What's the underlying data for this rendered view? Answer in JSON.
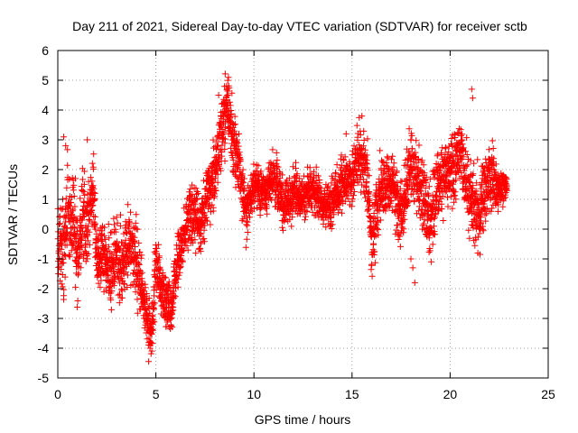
{
  "chart_data": {
    "type": "scatter",
    "title": "Day 211 of 2021, Sidereal Day-to-day VTEC variation (SDTVAR) for receiver sctb",
    "xlabel": "GPS time / hours",
    "ylabel": "SDTVAR / TECUs",
    "xlim": [
      0,
      25
    ],
    "ylim": [
      -5,
      6
    ],
    "xticks": [
      0,
      5,
      10,
      15,
      20,
      25
    ],
    "yticks": [
      -5,
      -4,
      -3,
      -2,
      -1,
      0,
      1,
      2,
      3,
      4,
      5,
      6
    ],
    "xtick_labels": [
      "0",
      "5",
      "10",
      "15",
      "20",
      "25"
    ],
    "ytick_labels": [
      "-5",
      "-4",
      "-3",
      "-2",
      "-1",
      "0",
      "1",
      "2",
      "3",
      "4",
      "5",
      "6"
    ],
    "grid": true,
    "grid_style": "dotted",
    "marker": "+",
    "marker_color": "#ff0000",
    "series": [
      {
        "name": "SDTVAR",
        "envelope_note": "approximate central trend (hours, TECU) with spread; dense '+' markers sampled every ~30 s",
        "trend": [
          [
            0.0,
            -0.5
          ],
          [
            0.3,
            -1.0
          ],
          [
            0.5,
            0.8
          ],
          [
            0.8,
            0.3
          ],
          [
            1.0,
            -1.2
          ],
          [
            1.3,
            0.6
          ],
          [
            1.5,
            0.0
          ],
          [
            1.8,
            1.5
          ],
          [
            2.0,
            -1.2
          ],
          [
            2.3,
            -0.8
          ],
          [
            2.6,
            -1.5
          ],
          [
            3.0,
            -0.8
          ],
          [
            3.3,
            -1.2
          ],
          [
            3.6,
            -0.5
          ],
          [
            4.0,
            -1.0
          ],
          [
            4.3,
            -2.0
          ],
          [
            4.6,
            -3.2
          ],
          [
            4.8,
            -3.6
          ],
          [
            5.0,
            -1.0
          ],
          [
            5.2,
            -1.8
          ],
          [
            5.5,
            -2.6
          ],
          [
            5.8,
            -2.8
          ],
          [
            6.0,
            -1.5
          ],
          [
            6.3,
            -0.5
          ],
          [
            6.6,
            0.3
          ],
          [
            7.0,
            0.5
          ],
          [
            7.3,
            0.0
          ],
          [
            7.6,
            1.2
          ],
          [
            8.0,
            1.8
          ],
          [
            8.3,
            3.0
          ],
          [
            8.6,
            4.2
          ],
          [
            8.8,
            3.6
          ],
          [
            9.0,
            2.8
          ],
          [
            9.3,
            1.8
          ],
          [
            9.6,
            0.5
          ],
          [
            10.0,
            1.5
          ],
          [
            10.5,
            1.2
          ],
          [
            11.0,
            1.8
          ],
          [
            11.5,
            0.8
          ],
          [
            12.0,
            1.2
          ],
          [
            12.5,
            1.0
          ],
          [
            13.0,
            1.4
          ],
          [
            13.5,
            0.8
          ],
          [
            14.0,
            0.9
          ],
          [
            14.5,
            1.6
          ],
          [
            15.0,
            1.6
          ],
          [
            15.3,
            2.5
          ],
          [
            15.6,
            2.4
          ],
          [
            15.8,
            1.5
          ],
          [
            16.0,
            -0.6
          ],
          [
            16.5,
            1.5
          ],
          [
            17.0,
            1.6
          ],
          [
            17.5,
            0.5
          ],
          [
            18.0,
            2.2
          ],
          [
            18.5,
            1.4
          ],
          [
            19.0,
            0.2
          ],
          [
            19.5,
            1.8
          ],
          [
            20.0,
            2.0
          ],
          [
            20.5,
            2.6
          ],
          [
            21.0,
            1.0
          ],
          [
            21.5,
            0.6
          ],
          [
            22.0,
            1.6
          ],
          [
            22.5,
            1.4
          ],
          [
            22.9,
            1.5
          ]
        ],
        "spread": [
          [
            0.0,
            1.4
          ],
          [
            1.0,
            1.3
          ],
          [
            2.0,
            1.1
          ],
          [
            3.0,
            1.0
          ],
          [
            4.0,
            1.0
          ],
          [
            5.0,
            0.8
          ],
          [
            6.0,
            0.8
          ],
          [
            7.0,
            0.8
          ],
          [
            8.0,
            1.0
          ],
          [
            9.0,
            1.0
          ],
          [
            10.0,
            0.6
          ],
          [
            11.0,
            0.7
          ],
          [
            12.0,
            0.7
          ],
          [
            13.0,
            0.6
          ],
          [
            14.0,
            0.7
          ],
          [
            15.0,
            0.8
          ],
          [
            16.0,
            1.0
          ],
          [
            17.0,
            0.9
          ],
          [
            18.0,
            1.0
          ],
          [
            19.0,
            1.1
          ],
          [
            20.0,
            1.0
          ],
          [
            21.0,
            1.1
          ],
          [
            22.0,
            1.1
          ],
          [
            22.9,
            0.3
          ]
        ],
        "outliers": [
          [
            0.3,
            3.1
          ],
          [
            0.4,
            2.8
          ],
          [
            1.5,
            3.0
          ],
          [
            4.7,
            -4.0
          ],
          [
            8.2,
            4.5
          ],
          [
            8.7,
            5.1
          ],
          [
            18.1,
            -1.3
          ],
          [
            18.2,
            -1.8
          ],
          [
            18.0,
            -1.0
          ],
          [
            21.1,
            4.7
          ],
          [
            21.15,
            4.4
          ],
          [
            14.7,
            3.2
          ],
          [
            15.5,
            3.8
          ]
        ]
      }
    ]
  }
}
